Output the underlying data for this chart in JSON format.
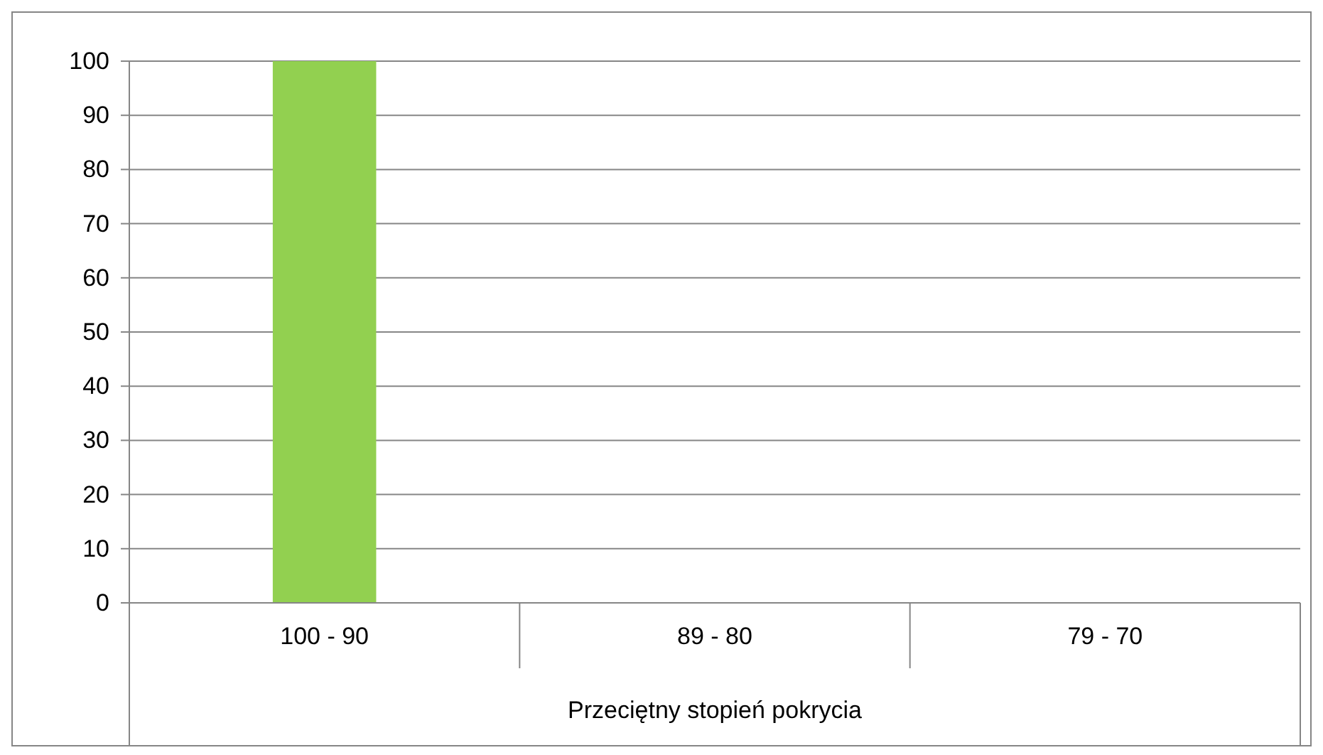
{
  "chart_data": {
    "type": "bar",
    "xlabel": "Przeciętny stopień pokrycia",
    "categories": [
      "100 - 90",
      "89 - 80",
      "79 - 70"
    ],
    "values": [
      100,
      0,
      0
    ],
    "color": "#92d050",
    "ylim": [
      0,
      100
    ],
    "yticks": [
      0,
      10,
      20,
      30,
      40,
      50,
      60,
      70,
      80,
      90,
      100
    ],
    "grid": "y"
  }
}
